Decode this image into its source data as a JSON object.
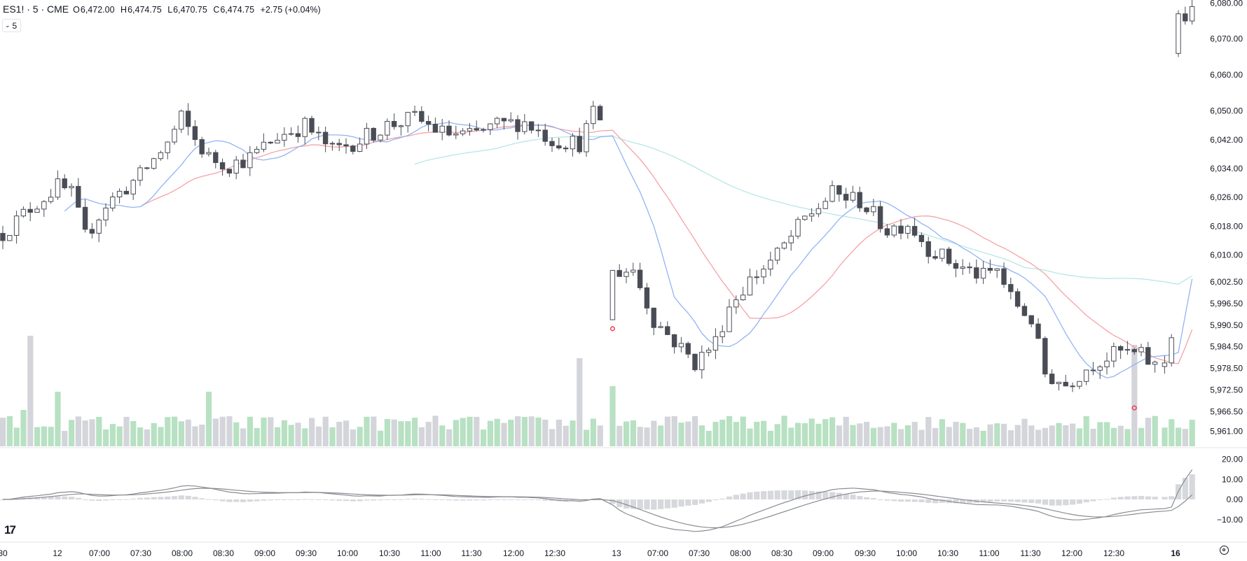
{
  "header": {
    "symbol": "ES1! · 5 · CME",
    "open_label": "O",
    "open": "6,472.00",
    "high_label": "H",
    "high": "6,474.75",
    "low_label": "L",
    "low": "6,470.75",
    "close_label": "C",
    "close": "6,474.75",
    "change": "+2.75 (+0.04%)",
    "interval_value": "5"
  },
  "colors": {
    "up_body": "#ffffff",
    "down_body": "#4a4c55",
    "candle_outline": "#4a4c55",
    "vol_up": "#b7e1c2",
    "vol_down": "#d3d5da",
    "ma_blue": "#93b4f3",
    "ma_red": "#f4a3a8",
    "ma_cyan": "#b9e6e6",
    "macd_hist": "#d6d8dc",
    "macd_lines": "#8a8c92",
    "dot_red": "#f23645"
  },
  "icons": {
    "logo": "tradingview-logo-icon",
    "settings": "settings-gear-icon",
    "dropdown": "chevron-down-icon"
  },
  "chart_data": {
    "type": "candlestick",
    "price_axis": {
      "ticks": [
        "6,080.00",
        "6,070.00",
        "6,060.00",
        "6,050.00",
        "6,042.00",
        "6,034.00",
        "6,026.00",
        "6,018.00",
        "6,010.00",
        "6,002.50",
        "5,996.50",
        "5,990.50",
        "5,984.50",
        "5,978.50",
        "5,972.50",
        "5,966.50",
        "5,961.00"
      ],
      "range": [
        5958,
        6082
      ]
    },
    "macd_axis": {
      "ticks": [
        "20.00",
        "10.00",
        "0.00",
        "−10.00"
      ],
      "range": [
        -16,
        24
      ]
    },
    "time_axis": [
      "30",
      "12",
      "07:00",
      "07:30",
      "08:00",
      "08:30",
      "09:00",
      "09:30",
      "10:00",
      "10:30",
      "11:00",
      "11:30",
      "12:00",
      "12:30",
      "13",
      "07:00",
      "07:30",
      "08:00",
      "08:30",
      "09:00",
      "09:30",
      "10:00",
      "10:30",
      "11:00",
      "11:30",
      "12:00",
      "12:30",
      "16"
    ],
    "sessions": [
      {
        "name": "12",
        "bars": 88,
        "first_open": 6016,
        "path": [
          [
            0,
            6016
          ],
          [
            4,
            6023
          ],
          [
            8,
            6029
          ],
          [
            10,
            6027
          ],
          [
            12,
            6015
          ],
          [
            15,
            6024
          ],
          [
            20,
            6032
          ],
          [
            24,
            6041
          ],
          [
            26,
            6048
          ],
          [
            28,
            6042
          ],
          [
            30,
            6037
          ],
          [
            33,
            6035
          ],
          [
            36,
            6037
          ],
          [
            40,
            6043
          ],
          [
            44,
            6046
          ],
          [
            48,
            6039
          ],
          [
            52,
            6042
          ],
          [
            56,
            6046
          ],
          [
            60,
            6048
          ],
          [
            64,
            6044
          ],
          [
            68,
            6043
          ],
          [
            72,
            6046
          ],
          [
            76,
            6047
          ],
          [
            80,
            6042
          ],
          [
            84,
            6041
          ],
          [
            86,
            6049
          ],
          [
            87,
            6048
          ]
        ]
      },
      {
        "name": "13",
        "bars": 80,
        "first_open": 5992,
        "path": [
          [
            0,
            6005
          ],
          [
            3,
            6006
          ],
          [
            6,
            5992
          ],
          [
            9,
            5986
          ],
          [
            12,
            5980
          ],
          [
            15,
            5986
          ],
          [
            17,
            5996
          ],
          [
            20,
            6003
          ],
          [
            24,
            6010
          ],
          [
            28,
            6020
          ],
          [
            32,
            6027
          ],
          [
            36,
            6025
          ],
          [
            40,
            6017
          ],
          [
            43,
            6019
          ],
          [
            46,
            6012
          ],
          [
            50,
            6007
          ],
          [
            54,
            6004
          ],
          [
            56,
            6006
          ],
          [
            58,
            5998
          ],
          [
            61,
            5992
          ],
          [
            63,
            5977
          ],
          [
            66,
            5974
          ],
          [
            70,
            5980
          ],
          [
            74,
            5983
          ],
          [
            77,
            5982
          ],
          [
            79,
            5979
          ]
        ]
      },
      {
        "name": "16",
        "bars": 5,
        "first_open": 5980,
        "path": [
          [
            0,
            5980
          ],
          [
            2,
            5986
          ],
          [
            3,
            6070
          ],
          [
            4,
            6080
          ]
        ]
      }
    ],
    "volume_scale_note": "relative",
    "markers": [
      {
        "session": "13",
        "bar": 0,
        "price": 5989.5
      },
      {
        "session": "13",
        "bar": 76,
        "price": 5967.5
      }
    ]
  }
}
